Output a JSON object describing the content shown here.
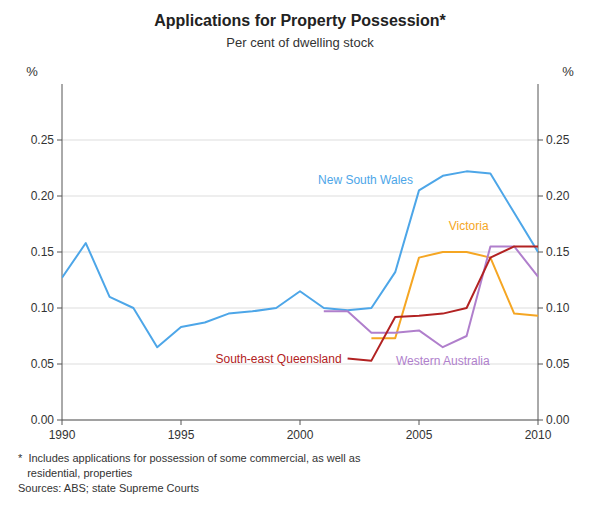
{
  "chart_data": {
    "type": "line",
    "title": "Applications for Property Possession*",
    "subtitle": "Per cent of dwelling stock",
    "footnote": "*  Includes applications for possession of some commercial, as well as\n   residential, properties\nSources: ABS; state Supreme Courts",
    "ylabel": "%",
    "y2label": "%",
    "x": [
      1990,
      1991,
      1992,
      1993,
      1994,
      1995,
      1996,
      1997,
      1998,
      1999,
      2000,
      2001,
      2002,
      2003,
      2004,
      2005,
      2006,
      2007,
      2008,
      2009,
      2010
    ],
    "xlim": [
      1990,
      2010
    ],
    "xticks": [
      1990,
      1995,
      2000,
      2005,
      2010
    ],
    "ylim": [
      0.0,
      0.3
    ],
    "yticks": [
      {
        "value": 0.0,
        "label": "0.00"
      },
      {
        "value": 0.05,
        "label": "0.05"
      },
      {
        "value": 0.1,
        "label": "0.10"
      },
      {
        "value": 0.15,
        "label": "0.15"
      },
      {
        "value": 0.2,
        "label": "0.20"
      },
      {
        "value": 0.25,
        "label": "0.25"
      }
    ],
    "y2lim": [
      0.0,
      0.3
    ],
    "y2ticks": [
      {
        "value": 0.0,
        "label": "0.00"
      },
      {
        "value": 0.05,
        "label": "0.05"
      },
      {
        "value": 0.1,
        "label": "0.10"
      },
      {
        "value": 0.15,
        "label": "0.15"
      },
      {
        "value": 0.2,
        "label": "0.20"
      },
      {
        "value": 0.25,
        "label": "0.25"
      }
    ],
    "grid": true,
    "series": [
      {
        "name": "New South Wales",
        "color": "#4da6e8",
        "values": [
          0.127,
          0.158,
          0.11,
          0.1,
          0.065,
          0.083,
          0.087,
          0.095,
          0.097,
          0.1,
          0.115,
          0.1,
          0.098,
          0.1,
          0.132,
          0.205,
          0.218,
          0.222,
          0.22,
          0.185,
          0.15
        ]
      },
      {
        "name": "Victoria",
        "color": "#f5a623",
        "values": [
          null,
          null,
          null,
          null,
          null,
          null,
          null,
          null,
          null,
          null,
          null,
          null,
          null,
          0.073,
          0.073,
          0.145,
          0.15,
          0.15,
          0.145,
          0.095,
          0.093
        ]
      },
      {
        "name": "Western Australia",
        "color": "#b07fcc",
        "values": [
          null,
          null,
          null,
          null,
          null,
          null,
          null,
          null,
          null,
          null,
          null,
          0.097,
          0.097,
          0.078,
          0.078,
          0.08,
          0.065,
          0.075,
          0.155,
          0.155,
          0.128
        ]
      },
      {
        "name": "South-east Queensland",
        "color": "#b22222",
        "values": [
          null,
          null,
          null,
          null,
          null,
          null,
          null,
          null,
          null,
          null,
          null,
          null,
          0.055,
          0.053,
          0.092,
          0.093,
          0.095,
          0.1,
          0.145,
          0.155,
          0.155
        ]
      }
    ]
  }
}
